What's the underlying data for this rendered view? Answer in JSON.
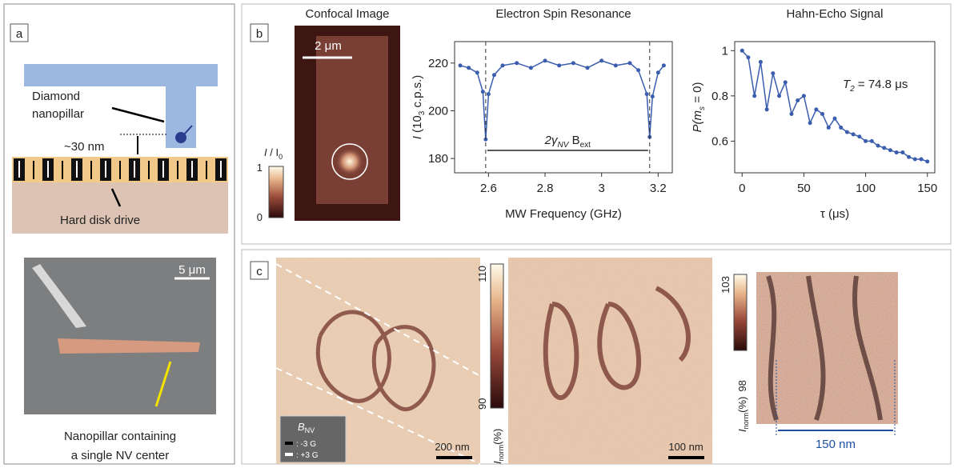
{
  "panel_a": {
    "label": "a",
    "pillar_label": [
      "Diamond",
      "nanopillar"
    ],
    "distance_label": "~30 nm",
    "hdd_label": "Hard disk drive",
    "scale_label": "5 μm",
    "caption": [
      "Nanopillar containing",
      "a single NV center"
    ]
  },
  "panel_b": {
    "label": "b",
    "confocal_title": "Confocal Image",
    "scale_label": "2 μm",
    "colorbar_label": [
      "I",
      " / I",
      "0"
    ],
    "colorbar_ticks": [
      "1",
      "0"
    ]
  },
  "panel_c": {
    "label": "c",
    "colorbar1_ticks": [
      "110",
      "90"
    ],
    "colorbar2_ticks": [
      "103",
      "98"
    ],
    "colorbar_label": [
      "I",
      "norm",
      "(%)"
    ],
    "scale_labels": [
      "200 nm",
      "100 nm",
      "150 nm"
    ],
    "legend": {
      "title": [
        "B",
        "NV"
      ],
      "entries": [
        ": -3 G",
        ": +3 G"
      ]
    }
  },
  "chart_data": [
    {
      "type": "scatter",
      "title": "Electron Spin Resonance",
      "xlabel": "MW Frequency (GHz)",
      "ylabel": [
        "I",
        " (10",
        "3",
        " c.p.s.)"
      ],
      "annotation": [
        "2γ",
        "NV",
        " B",
        "ext"
      ],
      "resonances": [
        2.59,
        3.17
      ],
      "color": "#3a5dae",
      "x": [
        2.5,
        2.53,
        2.56,
        2.58,
        2.59,
        2.6,
        2.62,
        2.65,
        2.7,
        2.75,
        2.8,
        2.85,
        2.9,
        2.95,
        3.0,
        3.05,
        3.1,
        3.13,
        3.16,
        3.17,
        3.18,
        3.2,
        3.22
      ],
      "values": [
        219,
        218,
        216,
        208,
        188,
        207,
        215,
        219,
        220,
        218,
        221,
        219,
        220,
        218,
        221,
        219,
        220,
        217,
        207,
        189,
        206,
        216,
        219
      ],
      "xlim": [
        2.48,
        3.25
      ],
      "ylim": [
        174,
        229
      ],
      "xticks": [
        2.6,
        2.8,
        3,
        3.2
      ],
      "yticks": [
        180,
        200,
        220
      ]
    },
    {
      "type": "scatter",
      "title": "Hahn-Echo Signal",
      "xlabel": "τ (μs)",
      "ylabel": [
        "P(m",
        "s",
        " = 0)"
      ],
      "annotation": [
        "T",
        "2",
        " = 74.8 μs"
      ],
      "color": "#3a5dae",
      "x": [
        0,
        5,
        10,
        15,
        20,
        25,
        30,
        35,
        40,
        45,
        50,
        55,
        60,
        65,
        70,
        75,
        80,
        85,
        90,
        95,
        100,
        105,
        110,
        115,
        120,
        125,
        130,
        135,
        140,
        145,
        150
      ],
      "values": [
        1.0,
        0.97,
        0.8,
        0.95,
        0.74,
        0.9,
        0.8,
        0.86,
        0.72,
        0.78,
        0.8,
        0.68,
        0.74,
        0.72,
        0.66,
        0.7,
        0.66,
        0.64,
        0.63,
        0.62,
        0.6,
        0.6,
        0.58,
        0.57,
        0.56,
        0.55,
        0.55,
        0.53,
        0.52,
        0.52,
        0.51
      ],
      "xlim": [
        -6,
        156
      ],
      "ylim": [
        0.46,
        1.04
      ],
      "xticks": [
        0,
        50,
        100,
        150
      ],
      "yticks": [
        0.6,
        0.8,
        1
      ]
    }
  ]
}
